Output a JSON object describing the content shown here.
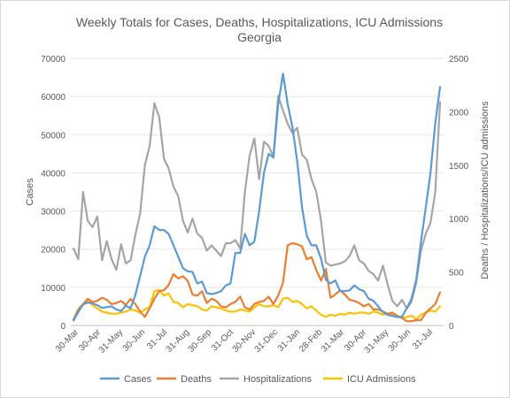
{
  "chart_data": {
    "type": "line",
    "title": "Weekly Totals for Cases, Deaths, Hospitalizations, ICU Admissions",
    "subtitle": "Georgia",
    "ylabel": "Cases",
    "y2label": "Deaths / Hospitalizations/ICU admissions",
    "ylim": [
      0,
      70000
    ],
    "y2lim": [
      0,
      2500
    ],
    "yticks": [
      "0",
      "10000",
      "20000",
      "30000",
      "40000",
      "50000",
      "60000",
      "70000"
    ],
    "y2ticks": [
      "0",
      "500",
      "1000",
      "1500",
      "2000",
      "2500"
    ],
    "xtick_labels": [
      "30-Mar",
      "30-Apr",
      "31-May",
      "30-Jun",
      "31-Jul",
      "31-Aug",
      "30-Sep",
      "31-Oct",
      "30-Nov",
      "31-Dec",
      "31-Jan",
      "28-Feb",
      "31-Mar",
      "30-Apr",
      "31-May",
      "30-Jun",
      "31-Jul"
    ],
    "grid": true,
    "legend_position": "bottom",
    "series": [
      {
        "name": "Cases",
        "axis": "left",
        "color": "#5b9bd5",
        "values": [
          1300,
          3500,
          5500,
          6000,
          5800,
          5300,
          4600,
          4800,
          5000,
          4200,
          3800,
          5200,
          4500,
          8000,
          13000,
          18000,
          21000,
          26000,
          25000,
          25000,
          24000,
          21000,
          18000,
          15000,
          14200,
          14000,
          11000,
          11500,
          8500,
          8200,
          8500,
          9000,
          10500,
          11000,
          19000,
          19000,
          24000,
          21000,
          22000,
          30000,
          40000,
          45000,
          44000,
          58000,
          66000,
          58000,
          52000,
          43000,
          31000,
          23500,
          21000,
          21000,
          17500,
          12000,
          11000,
          11800,
          9000,
          9000,
          9200,
          10500,
          9500,
          9000,
          7000,
          6500,
          5000,
          3500,
          2800,
          2500,
          2200,
          2300,
          4500,
          7000,
          12000,
          22000,
          31000,
          40000,
          53000,
          62500
        ]
      },
      {
        "name": "Deaths",
        "axis": "right",
        "color": "#ed7d31",
        "values": [
          50,
          150,
          200,
          250,
          220,
          230,
          260,
          240,
          200,
          210,
          230,
          190,
          250,
          200,
          130,
          80,
          160,
          250,
          320,
          330,
          380,
          480,
          440,
          460,
          420,
          290,
          280,
          320,
          210,
          250,
          230,
          180,
          170,
          200,
          220,
          270,
          170,
          150,
          200,
          220,
          230,
          270,
          200,
          280,
          400,
          750,
          770,
          760,
          740,
          620,
          640,
          520,
          420,
          530,
          260,
          290,
          330,
          290,
          240,
          230,
          210,
          180,
          200,
          150,
          150,
          130,
          110,
          120,
          90,
          70,
          40,
          40,
          50,
          50,
          120,
          160,
          200,
          310
        ]
      },
      {
        "name": "Hospitalizations",
        "axis": "right",
        "color": "#a5a5a5",
        "values": [
          720,
          620,
          1250,
          980,
          920,
          1020,
          610,
          790,
          620,
          520,
          760,
          580,
          610,
          850,
          1050,
          1500,
          1680,
          2080,
          1950,
          1560,
          1470,
          1300,
          1210,
          980,
          870,
          1000,
          860,
          820,
          700,
          750,
          700,
          650,
          770,
          770,
          800,
          720,
          1250,
          1590,
          1750,
          1370,
          1720,
          1680,
          1580,
          2150,
          2010,
          1890,
          1800,
          1850,
          1600,
          1550,
          1370,
          1250,
          980,
          590,
          560,
          570,
          580,
          600,
          650,
          750,
          610,
          580,
          510,
          480,
          420,
          560,
          380,
          230,
          180,
          240,
          160,
          220,
          400,
          700,
          860,
          960,
          1250,
          2090
        ]
      },
      {
        "name": "ICU Admissions",
        "axis": "right",
        "color": "#ffc000",
        "values": [
          60,
          150,
          200,
          230,
          190,
          160,
          130,
          120,
          110,
          110,
          120,
          130,
          150,
          140,
          120,
          150,
          170,
          320,
          330,
          280,
          300,
          220,
          210,
          170,
          200,
          190,
          180,
          150,
          140,
          180,
          170,
          160,
          140,
          130,
          130,
          150,
          140,
          130,
          170,
          200,
          180,
          180,
          190,
          170,
          250,
          260,
          220,
          230,
          200,
          160,
          180,
          140,
          100,
          80,
          100,
          90,
          110,
          100,
          120,
          110,
          120,
          120,
          110,
          130,
          120,
          100,
          110,
          110,
          90,
          70,
          80,
          90,
          60,
          100,
          120,
          140,
          130,
          180
        ]
      }
    ]
  }
}
